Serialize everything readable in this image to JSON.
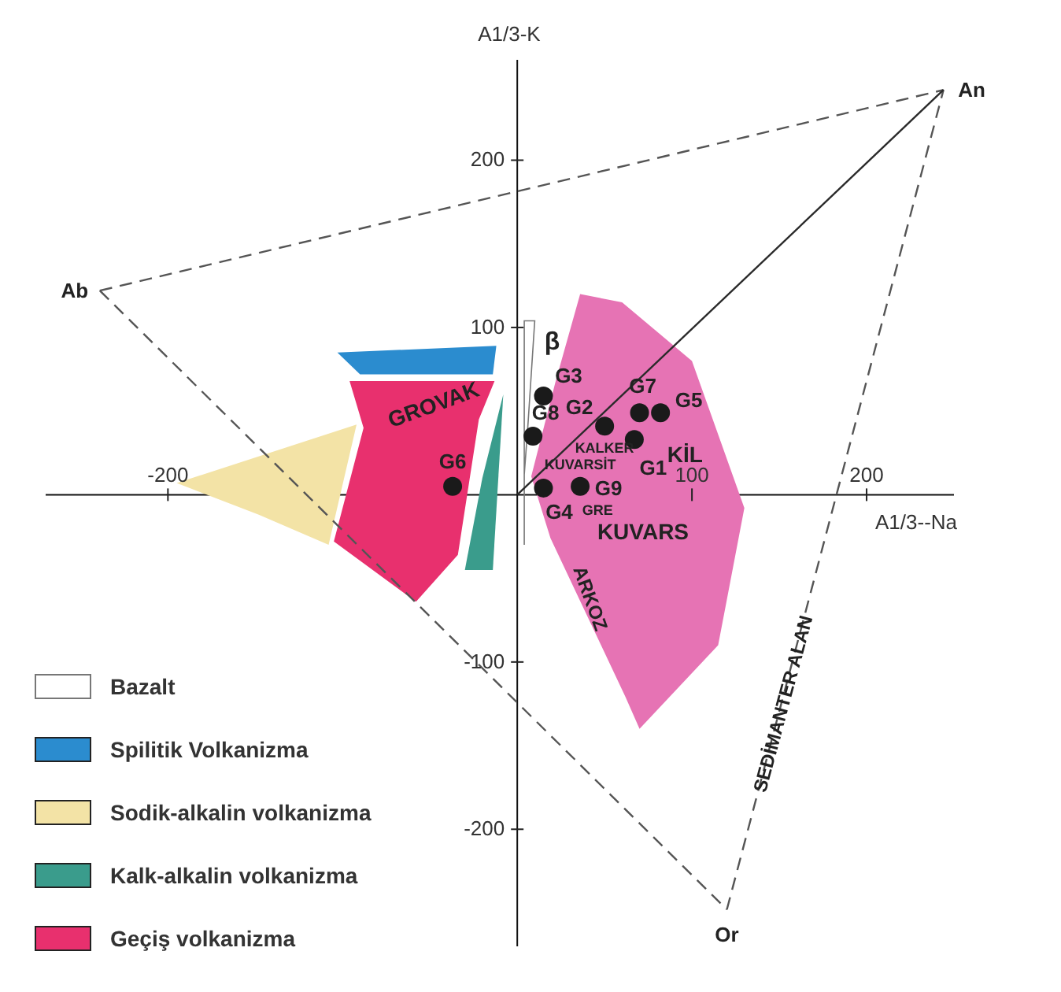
{
  "chart_data": {
    "type": "scatter",
    "xlabel": "A1/3--Na",
    "ylabel": "A1/3-K",
    "xlim": [
      -270,
      250
    ],
    "ylim": [
      -270,
      260
    ],
    "xticks": [
      -200,
      100,
      200
    ],
    "yticks": [
      -200,
      -100,
      100,
      200
    ],
    "legend": "bottom left",
    "series": [
      {
        "type": "area",
        "color": "#e673b4",
        "x": [
          36,
          60,
          100,
          130,
          115,
          70,
          62,
          19,
          8,
          22
        ],
        "values": [
          120,
          115,
          80,
          -8,
          -90,
          -140,
          -121,
          -26,
          11,
          68
        ]
      },
      {
        "type": "area",
        "name": "Bazalt",
        "color": "#ffffff",
        "x": [
          4,
          10,
          6,
          4,
          4
        ],
        "values": [
          104,
          104,
          40,
          12,
          -30
        ]
      },
      {
        "type": "area",
        "name": "Spilitik Volkanizma",
        "color": "#2b8ccf",
        "x": [
          -103,
          -12,
          -14,
          -90
        ],
        "values": [
          85,
          89,
          72,
          72
        ]
      },
      {
        "type": "area",
        "name": "Sodik-alkalin volkanizma",
        "color": "#f3e3a6",
        "x": [
          -195,
          -92,
          -108,
          -148
        ],
        "values": [
          7,
          42,
          -30,
          -12
        ]
      },
      {
        "type": "area",
        "name": "Kalk-alkalin volkanizma",
        "color": "#3a9c8c",
        "x": [
          -8,
          -14,
          -30,
          -20
        ],
        "values": [
          60,
          -45,
          -45,
          10
        ]
      },
      {
        "type": "area",
        "name": "Geçiş volkanizma",
        "color": "#e8306e",
        "x": [
          -96,
          -13,
          -22,
          -34,
          -58,
          -105,
          -88
        ],
        "values": [
          68,
          68,
          45,
          -36,
          -64,
          -28,
          40
        ]
      },
      {
        "type": "line",
        "color": "#555555",
        "line_style": "dashed",
        "x": [
          -239,
          244
        ],
        "values": [
          122,
          242
        ]
      },
      {
        "type": "line",
        "color": "#555555",
        "line_style": "dashed",
        "x": [
          120,
          244
        ],
        "values": [
          -248,
          242
        ]
      },
      {
        "type": "line",
        "color": "#555555",
        "line_style": "dashed",
        "x": [
          -239,
          120
        ],
        "values": [
          122,
          -248
        ]
      },
      {
        "type": "line",
        "color": "#2a2a2a",
        "line_style": "solid",
        "x": [
          0,
          244
        ],
        "values": [
          0,
          242
        ]
      },
      {
        "color": "#1a1a1a",
        "x": [
          67,
          50,
          15,
          15,
          82,
          -37,
          70,
          9,
          36
        ],
        "values": [
          33,
          41,
          59,
          4,
          49,
          5,
          49,
          35,
          5
        ]
      }
    ],
    "annotations": [
      {
        "text": "G1",
        "x": 67,
        "y": 33
      },
      {
        "text": "G2",
        "x": 50,
        "y": 41
      },
      {
        "text": "G3",
        "x": 15,
        "y": 59
      },
      {
        "text": "G4",
        "x": 15,
        "y": 4
      },
      {
        "text": "G5",
        "x": 82,
        "y": 49
      },
      {
        "text": "G6",
        "x": -37,
        "y": 5
      },
      {
        "text": "G7",
        "x": 70,
        "y": 49
      },
      {
        "text": "G8",
        "x": 9,
        "y": 35
      },
      {
        "text": "G9",
        "x": 36,
        "y": 5
      },
      "GROVAK",
      "KİL",
      "KALKER",
      "KUVARSİT",
      "GRE",
      "KUVARS",
      "ARKOZ",
      "SEDİMANTER ALAN",
      "β",
      {
        "text": "Ab",
        "x": -239,
        "y": 122
      },
      {
        "text": "An",
        "x": 244,
        "y": 242
      },
      {
        "text": "Or",
        "x": 120,
        "y": -248
      }
    ]
  }
}
